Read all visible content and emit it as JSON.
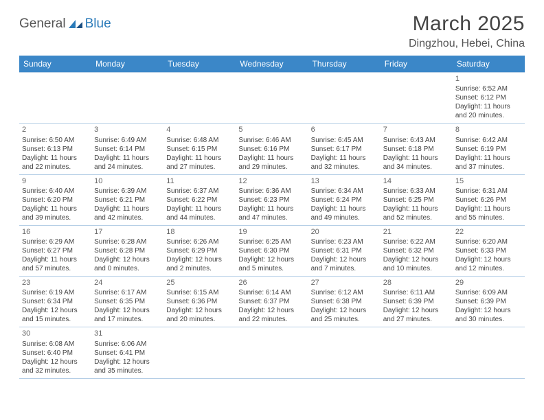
{
  "logo": {
    "general": "General",
    "blue": "Blue"
  },
  "title": "March 2025",
  "location": "Dingzhou, Hebei, China",
  "colors": {
    "header_bg": "#3b87c8",
    "header_text": "#ffffff",
    "border": "#b5cee6",
    "text": "#444444",
    "logo_general": "#555555",
    "logo_blue": "#2a7ab9"
  },
  "weekdays": [
    "Sunday",
    "Monday",
    "Tuesday",
    "Wednesday",
    "Thursday",
    "Friday",
    "Saturday"
  ],
  "weeks": [
    [
      null,
      null,
      null,
      null,
      null,
      null,
      {
        "n": "1",
        "sr": "Sunrise: 6:52 AM",
        "ss": "Sunset: 6:12 PM",
        "dl": "Daylight: 11 hours and 20 minutes."
      }
    ],
    [
      {
        "n": "2",
        "sr": "Sunrise: 6:50 AM",
        "ss": "Sunset: 6:13 PM",
        "dl": "Daylight: 11 hours and 22 minutes."
      },
      {
        "n": "3",
        "sr": "Sunrise: 6:49 AM",
        "ss": "Sunset: 6:14 PM",
        "dl": "Daylight: 11 hours and 24 minutes."
      },
      {
        "n": "4",
        "sr": "Sunrise: 6:48 AM",
        "ss": "Sunset: 6:15 PM",
        "dl": "Daylight: 11 hours and 27 minutes."
      },
      {
        "n": "5",
        "sr": "Sunrise: 6:46 AM",
        "ss": "Sunset: 6:16 PM",
        "dl": "Daylight: 11 hours and 29 minutes."
      },
      {
        "n": "6",
        "sr": "Sunrise: 6:45 AM",
        "ss": "Sunset: 6:17 PM",
        "dl": "Daylight: 11 hours and 32 minutes."
      },
      {
        "n": "7",
        "sr": "Sunrise: 6:43 AM",
        "ss": "Sunset: 6:18 PM",
        "dl": "Daylight: 11 hours and 34 minutes."
      },
      {
        "n": "8",
        "sr": "Sunrise: 6:42 AM",
        "ss": "Sunset: 6:19 PM",
        "dl": "Daylight: 11 hours and 37 minutes."
      }
    ],
    [
      {
        "n": "9",
        "sr": "Sunrise: 6:40 AM",
        "ss": "Sunset: 6:20 PM",
        "dl": "Daylight: 11 hours and 39 minutes."
      },
      {
        "n": "10",
        "sr": "Sunrise: 6:39 AM",
        "ss": "Sunset: 6:21 PM",
        "dl": "Daylight: 11 hours and 42 minutes."
      },
      {
        "n": "11",
        "sr": "Sunrise: 6:37 AM",
        "ss": "Sunset: 6:22 PM",
        "dl": "Daylight: 11 hours and 44 minutes."
      },
      {
        "n": "12",
        "sr": "Sunrise: 6:36 AM",
        "ss": "Sunset: 6:23 PM",
        "dl": "Daylight: 11 hours and 47 minutes."
      },
      {
        "n": "13",
        "sr": "Sunrise: 6:34 AM",
        "ss": "Sunset: 6:24 PM",
        "dl": "Daylight: 11 hours and 49 minutes."
      },
      {
        "n": "14",
        "sr": "Sunrise: 6:33 AM",
        "ss": "Sunset: 6:25 PM",
        "dl": "Daylight: 11 hours and 52 minutes."
      },
      {
        "n": "15",
        "sr": "Sunrise: 6:31 AM",
        "ss": "Sunset: 6:26 PM",
        "dl": "Daylight: 11 hours and 55 minutes."
      }
    ],
    [
      {
        "n": "16",
        "sr": "Sunrise: 6:29 AM",
        "ss": "Sunset: 6:27 PM",
        "dl": "Daylight: 11 hours and 57 minutes."
      },
      {
        "n": "17",
        "sr": "Sunrise: 6:28 AM",
        "ss": "Sunset: 6:28 PM",
        "dl": "Daylight: 12 hours and 0 minutes."
      },
      {
        "n": "18",
        "sr": "Sunrise: 6:26 AM",
        "ss": "Sunset: 6:29 PM",
        "dl": "Daylight: 12 hours and 2 minutes."
      },
      {
        "n": "19",
        "sr": "Sunrise: 6:25 AM",
        "ss": "Sunset: 6:30 PM",
        "dl": "Daylight: 12 hours and 5 minutes."
      },
      {
        "n": "20",
        "sr": "Sunrise: 6:23 AM",
        "ss": "Sunset: 6:31 PM",
        "dl": "Daylight: 12 hours and 7 minutes."
      },
      {
        "n": "21",
        "sr": "Sunrise: 6:22 AM",
        "ss": "Sunset: 6:32 PM",
        "dl": "Daylight: 12 hours and 10 minutes."
      },
      {
        "n": "22",
        "sr": "Sunrise: 6:20 AM",
        "ss": "Sunset: 6:33 PM",
        "dl": "Daylight: 12 hours and 12 minutes."
      }
    ],
    [
      {
        "n": "23",
        "sr": "Sunrise: 6:19 AM",
        "ss": "Sunset: 6:34 PM",
        "dl": "Daylight: 12 hours and 15 minutes."
      },
      {
        "n": "24",
        "sr": "Sunrise: 6:17 AM",
        "ss": "Sunset: 6:35 PM",
        "dl": "Daylight: 12 hours and 17 minutes."
      },
      {
        "n": "25",
        "sr": "Sunrise: 6:15 AM",
        "ss": "Sunset: 6:36 PM",
        "dl": "Daylight: 12 hours and 20 minutes."
      },
      {
        "n": "26",
        "sr": "Sunrise: 6:14 AM",
        "ss": "Sunset: 6:37 PM",
        "dl": "Daylight: 12 hours and 22 minutes."
      },
      {
        "n": "27",
        "sr": "Sunrise: 6:12 AM",
        "ss": "Sunset: 6:38 PM",
        "dl": "Daylight: 12 hours and 25 minutes."
      },
      {
        "n": "28",
        "sr": "Sunrise: 6:11 AM",
        "ss": "Sunset: 6:39 PM",
        "dl": "Daylight: 12 hours and 27 minutes."
      },
      {
        "n": "29",
        "sr": "Sunrise: 6:09 AM",
        "ss": "Sunset: 6:39 PM",
        "dl": "Daylight: 12 hours and 30 minutes."
      }
    ],
    [
      {
        "n": "30",
        "sr": "Sunrise: 6:08 AM",
        "ss": "Sunset: 6:40 PM",
        "dl": "Daylight: 12 hours and 32 minutes."
      },
      {
        "n": "31",
        "sr": "Sunrise: 6:06 AM",
        "ss": "Sunset: 6:41 PM",
        "dl": "Daylight: 12 hours and 35 minutes."
      },
      null,
      null,
      null,
      null,
      null
    ]
  ]
}
